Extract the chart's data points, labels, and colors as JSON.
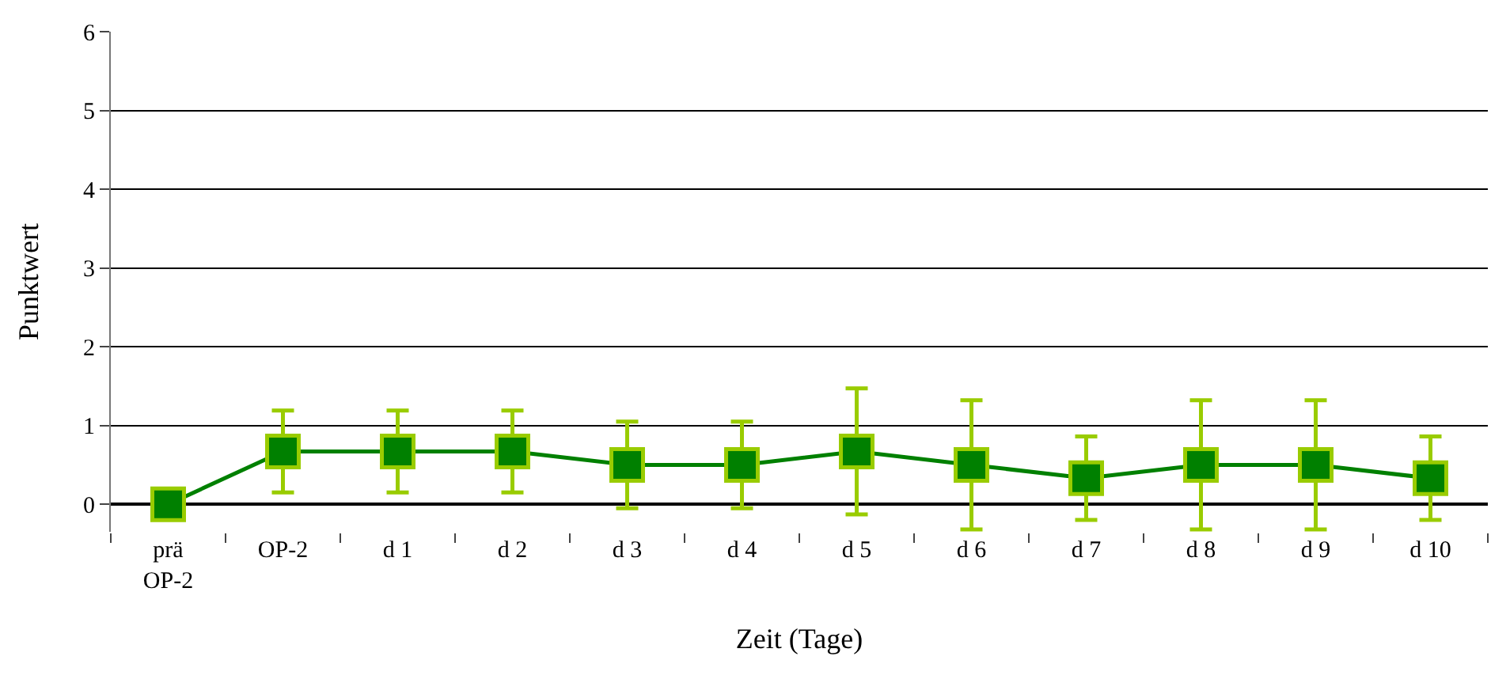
{
  "chart_data": {
    "type": "line",
    "xlabel": "Zeit (Tage)",
    "ylabel": "Punktwert",
    "categories": [
      "prä\nOP-2",
      "OP-2",
      "d 1",
      "d 2",
      "d 3",
      "d 4",
      "d 5",
      "d 6",
      "d 7",
      "d 8",
      "d 9",
      "d 10"
    ],
    "series": [
      {
        "color": "#008000",
        "values": [
          0,
          0.67,
          0.67,
          0.67,
          0.5,
          0.5,
          0.67,
          0.5,
          0.33,
          0.5,
          0.5,
          0.33
        ],
        "errors": [
          null,
          0.52,
          0.52,
          0.52,
          0.55,
          0.55,
          0.8,
          0.82,
          0.53,
          0.82,
          0.82,
          0.53
        ]
      }
    ],
    "ylim": [
      -0.35,
      6
    ],
    "yticks": [
      0,
      1,
      2,
      3,
      4,
      5,
      6
    ],
    "grid": "y",
    "marker": "square",
    "line_style": "solid"
  }
}
